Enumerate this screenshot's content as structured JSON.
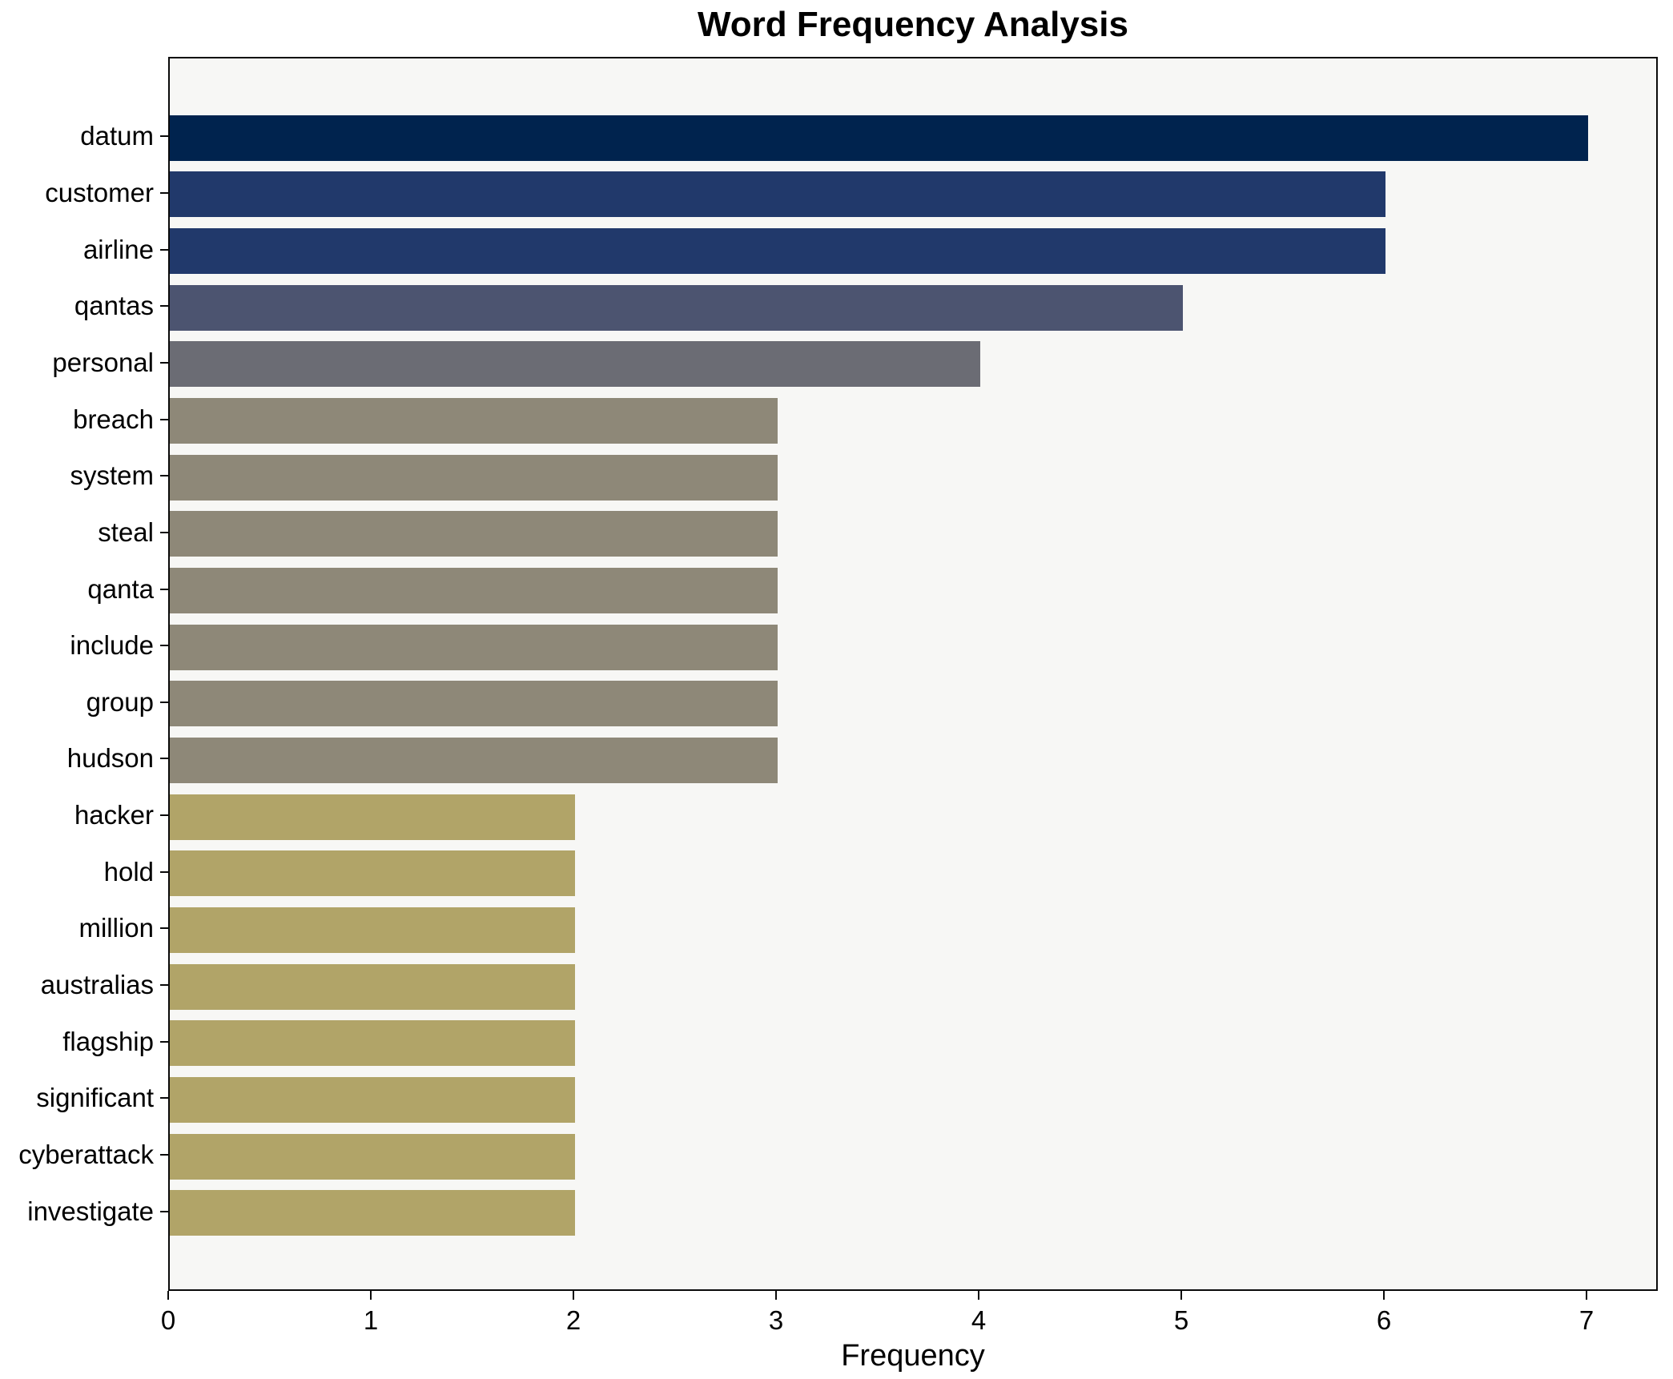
{
  "chart_data": {
    "type": "bar",
    "orientation": "horizontal",
    "title": "Word Frequency Analysis",
    "xlabel": "Frequency",
    "ylabel": "",
    "categories": [
      "datum",
      "customer",
      "airline",
      "qantas",
      "personal",
      "breach",
      "system",
      "steal",
      "qanta",
      "include",
      "group",
      "hudson",
      "hacker",
      "hold",
      "million",
      "australias",
      "flagship",
      "significant",
      "cyberattack",
      "investigate"
    ],
    "values": [
      7,
      6,
      6,
      5,
      4,
      3,
      3,
      3,
      3,
      3,
      3,
      3,
      2,
      2,
      2,
      2,
      2,
      2,
      2,
      2
    ],
    "colors": [
      "#00234e",
      "#21396b",
      "#21396b",
      "#4c5470",
      "#6b6c74",
      "#8e8878",
      "#8e8878",
      "#8e8878",
      "#8e8878",
      "#8e8878",
      "#8e8878",
      "#8e8878",
      "#b1a468",
      "#b1a468",
      "#b1a468",
      "#b1a468",
      "#b1a468",
      "#b1a468",
      "#b1a468",
      "#b1a468"
    ],
    "xlim": [
      0,
      7.35
    ],
    "xticks": [
      0,
      1,
      2,
      3,
      4,
      5,
      6,
      7
    ],
    "grid": false,
    "legend": null,
    "plot_background": "#f7f7f5",
    "figure_background": "#ffffff",
    "spine_color": "#0a0a0a"
  }
}
